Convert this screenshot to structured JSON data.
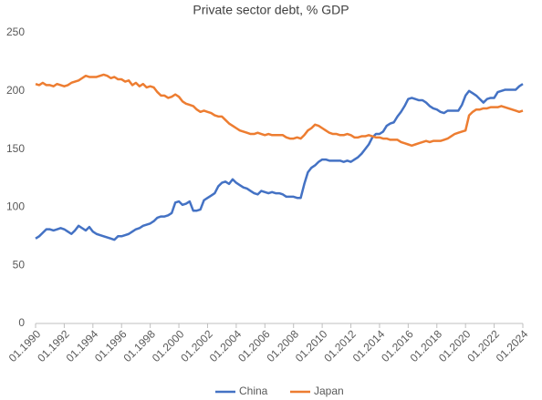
{
  "chart_data": {
    "type": "line",
    "title": "Private sector debt, % GDP",
    "x": [
      1990,
      1990.25,
      1990.5,
      1990.75,
      1991,
      1991.25,
      1991.5,
      1991.75,
      1992,
      1992.25,
      1992.5,
      1992.75,
      1993,
      1993.25,
      1993.5,
      1993.75,
      1994,
      1994.25,
      1994.5,
      1994.75,
      1995,
      1995.25,
      1995.5,
      1995.75,
      1996,
      1996.25,
      1996.5,
      1996.75,
      1997,
      1997.25,
      1997.5,
      1997.75,
      1998,
      1998.25,
      1998.5,
      1998.75,
      1999,
      1999.25,
      1999.5,
      1999.75,
      2000,
      2000.25,
      2000.5,
      2000.75,
      2001,
      2001.25,
      2001.5,
      2001.75,
      2002,
      2002.25,
      2002.5,
      2002.75,
      2003,
      2003.25,
      2003.5,
      2003.75,
      2004,
      2004.25,
      2004.5,
      2004.75,
      2005,
      2005.25,
      2005.5,
      2005.75,
      2006,
      2006.25,
      2006.5,
      2006.75,
      2007,
      2007.25,
      2007.5,
      2007.75,
      2008,
      2008.25,
      2008.5,
      2008.75,
      2009,
      2009.25,
      2009.5,
      2009.75,
      2010,
      2010.25,
      2010.5,
      2010.75,
      2011,
      2011.25,
      2011.5,
      2011.75,
      2012,
      2012.25,
      2012.5,
      2012.75,
      2013,
      2013.25,
      2013.5,
      2013.75,
      2014,
      2014.25,
      2014.5,
      2014.75,
      2015,
      2015.25,
      2015.5,
      2015.75,
      2016,
      2016.25,
      2016.5,
      2016.75,
      2017,
      2017.25,
      2017.5,
      2017.75,
      2018,
      2018.25,
      2018.5,
      2018.75,
      2019,
      2019.25,
      2019.5,
      2019.75,
      2020,
      2020.25,
      2020.5,
      2020.75,
      2021,
      2021.25,
      2021.5,
      2021.75,
      2022,
      2022.25,
      2022.5,
      2022.75,
      2023,
      2023.25,
      2023.5,
      2023.75,
      2024
    ],
    "series": [
      {
        "name": "China",
        "color": "#4472c4",
        "values": [
          73,
          75,
          78,
          81,
          81,
          80,
          81,
          82,
          81,
          79,
          77,
          80,
          84,
          82,
          80,
          83,
          79,
          77,
          76,
          75,
          74,
          73,
          72,
          75,
          75,
          76,
          77,
          79,
          81,
          82,
          84,
          85,
          86,
          88,
          91,
          92,
          92,
          93,
          95,
          104,
          105,
          102,
          103,
          105,
          97,
          97,
          98,
          106,
          108,
          110,
          112,
          118,
          121,
          122,
          120,
          124,
          121,
          119,
          117,
          116,
          114,
          112,
          111,
          114,
          113,
          112,
          113,
          112,
          112,
          111,
          109,
          109,
          109,
          108,
          108,
          120,
          130,
          134,
          136,
          139,
          141,
          141,
          140,
          140,
          140,
          140,
          139,
          140,
          139,
          141,
          143,
          146,
          150,
          154,
          160,
          163,
          163,
          165,
          170,
          172,
          173,
          178,
          182,
          187,
          193,
          194,
          193,
          192,
          192,
          190,
          187,
          185,
          184,
          182,
          181,
          183,
          183,
          183,
          183,
          188,
          196,
          200,
          198,
          196,
          193,
          190,
          193,
          194,
          194,
          199,
          200,
          201,
          201,
          201,
          201,
          204,
          206
        ]
      },
      {
        "name": "Japan",
        "color": "#ed7d31",
        "values": [
          206,
          205,
          207,
          205,
          205,
          204,
          206,
          205,
          204,
          205,
          207,
          208,
          209,
          211,
          213,
          212,
          212,
          212,
          213,
          214,
          213,
          211,
          212,
          210,
          210,
          208,
          209,
          205,
          207,
          204,
          206,
          203,
          204,
          203,
          199,
          196,
          196,
          194,
          195,
          197,
          195,
          191,
          189,
          188,
          187,
          184,
          182,
          183,
          182,
          181,
          179,
          178,
          178,
          175,
          172,
          170,
          168,
          166,
          165,
          164,
          163,
          163,
          164,
          163,
          162,
          163,
          162,
          162,
          162,
          162,
          160,
          159,
          159,
          160,
          159,
          162,
          166,
          168,
          171,
          170,
          168,
          166,
          164,
          163,
          163,
          162,
          162,
          163,
          162,
          160,
          160,
          161,
          161,
          162,
          161,
          160,
          160,
          159,
          159,
          158,
          158,
          158,
          156,
          155,
          154,
          153,
          154,
          155,
          156,
          157,
          156,
          157,
          157,
          157,
          158,
          159,
          161,
          163,
          164,
          165,
          166,
          179,
          182,
          184,
          184,
          185,
          185,
          186,
          186,
          186,
          187,
          186,
          185,
          184,
          183,
          182,
          183
        ]
      }
    ],
    "xlim": [
      1990,
      2024
    ],
    "xticks": [
      {
        "value": 1990,
        "label": "01.1990"
      },
      {
        "value": 1992,
        "label": "01.1992"
      },
      {
        "value": 1994,
        "label": "01.1994"
      },
      {
        "value": 1996,
        "label": "01.1996"
      },
      {
        "value": 1998,
        "label": "01.1998"
      },
      {
        "value": 2000,
        "label": "01.2000"
      },
      {
        "value": 2002,
        "label": "01.2002"
      },
      {
        "value": 2004,
        "label": "01.2004"
      },
      {
        "value": 2006,
        "label": "01.2006"
      },
      {
        "value": 2008,
        "label": "01.2008"
      },
      {
        "value": 2010,
        "label": "01.2010"
      },
      {
        "value": 2012,
        "label": "01.2012"
      },
      {
        "value": 2014,
        "label": "01.2014"
      },
      {
        "value": 2016,
        "label": "01.2016"
      },
      {
        "value": 2018,
        "label": "01.2018"
      },
      {
        "value": 2020,
        "label": "01.2020"
      },
      {
        "value": 2022,
        "label": "01.2022"
      },
      {
        "value": 2024,
        "label": "01.2024"
      }
    ],
    "ylim": [
      0,
      250
    ],
    "yticks": [
      0,
      50,
      100,
      150,
      200,
      250
    ],
    "grid": false,
    "legend": "bottom"
  }
}
